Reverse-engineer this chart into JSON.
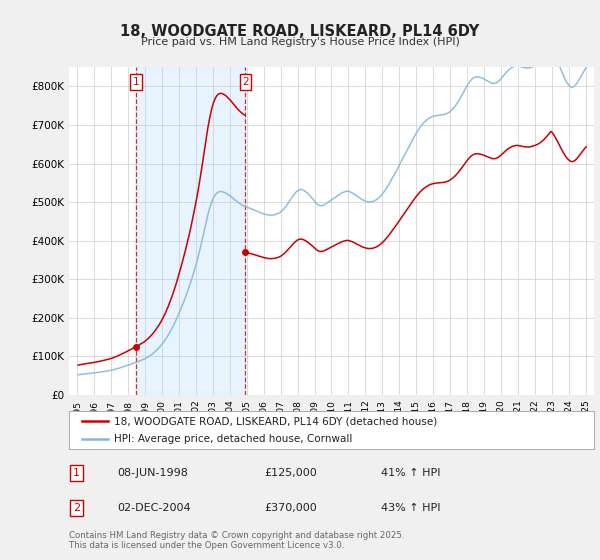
{
  "title": "18, WOODGATE ROAD, LISKEARD, PL14 6DY",
  "subtitle": "Price paid vs. HM Land Registry's House Price Index (HPI)",
  "legend_line1": "18, WOODGATE ROAD, LISKEARD, PL14 6DY (detached house)",
  "legend_line2": "HPI: Average price, detached house, Cornwall",
  "footnote": "Contains HM Land Registry data © Crown copyright and database right 2025.\nThis data is licensed under the Open Government Licence v3.0.",
  "table_rows": [
    [
      "1",
      "08-JUN-1998",
      "£125,000",
      "41% ↑ HPI"
    ],
    [
      "2",
      "02-DEC-2004",
      "£370,000",
      "43% ↑ HPI"
    ]
  ],
  "sale1": {
    "year": 1998.44,
    "price": 125000
  },
  "sale2": {
    "year": 2004.92,
    "price": 370000
  },
  "red_color": "#cc0000",
  "hpi_color": "#85b8d8",
  "shade_color": "#ddeeff",
  "background_color": "#f0f0f0",
  "plot_bg_color": "#ffffff",
  "ylim": [
    0,
    850000
  ],
  "yticks": [
    0,
    100000,
    200000,
    300000,
    400000,
    500000,
    600000,
    700000,
    800000
  ],
  "ytick_labels": [
    "£0",
    "£100K",
    "£200K",
    "£300K",
    "£400K",
    "£500K",
    "£600K",
    "£700K",
    "£800K"
  ],
  "xlim": [
    1994.5,
    2025.5
  ],
  "xticks": [
    1995,
    1996,
    1997,
    1998,
    1999,
    2000,
    2001,
    2002,
    2003,
    2004,
    2005,
    2006,
    2007,
    2008,
    2009,
    2010,
    2011,
    2012,
    2013,
    2014,
    2015,
    2016,
    2017,
    2018,
    2019,
    2020,
    2021,
    2022,
    2023,
    2024,
    2025
  ],
  "hpi_months": [
    1995.042,
    1995.125,
    1995.208,
    1995.292,
    1995.375,
    1995.458,
    1995.542,
    1995.625,
    1995.708,
    1995.792,
    1995.875,
    1995.958,
    1996.042,
    1996.125,
    1996.208,
    1996.292,
    1996.375,
    1996.458,
    1996.542,
    1996.625,
    1996.708,
    1996.792,
    1996.875,
    1996.958,
    1997.042,
    1997.125,
    1997.208,
    1997.292,
    1997.375,
    1997.458,
    1997.542,
    1997.625,
    1997.708,
    1997.792,
    1997.875,
    1997.958,
    1998.042,
    1998.125,
    1998.208,
    1998.292,
    1998.375,
    1998.458,
    1998.542,
    1998.625,
    1998.708,
    1998.792,
    1998.875,
    1998.958,
    1999.042,
    1999.125,
    1999.208,
    1999.292,
    1999.375,
    1999.458,
    1999.542,
    1999.625,
    1999.708,
    1999.792,
    1999.875,
    1999.958,
    2000.042,
    2000.125,
    2000.208,
    2000.292,
    2000.375,
    2000.458,
    2000.542,
    2000.625,
    2000.708,
    2000.792,
    2000.875,
    2000.958,
    2001.042,
    2001.125,
    2001.208,
    2001.292,
    2001.375,
    2001.458,
    2001.542,
    2001.625,
    2001.708,
    2001.792,
    2001.875,
    2001.958,
    2002.042,
    2002.125,
    2002.208,
    2002.292,
    2002.375,
    2002.458,
    2002.542,
    2002.625,
    2002.708,
    2002.792,
    2002.875,
    2002.958,
    2003.042,
    2003.125,
    2003.208,
    2003.292,
    2003.375,
    2003.458,
    2003.542,
    2003.625,
    2003.708,
    2003.792,
    2003.875,
    2003.958,
    2004.042,
    2004.125,
    2004.208,
    2004.292,
    2004.375,
    2004.458,
    2004.542,
    2004.625,
    2004.708,
    2004.792,
    2004.875,
    2004.958,
    2005.042,
    2005.125,
    2005.208,
    2005.292,
    2005.375,
    2005.458,
    2005.542,
    2005.625,
    2005.708,
    2005.792,
    2005.875,
    2005.958,
    2006.042,
    2006.125,
    2006.208,
    2006.292,
    2006.375,
    2006.458,
    2006.542,
    2006.625,
    2006.708,
    2006.792,
    2006.875,
    2006.958,
    2007.042,
    2007.125,
    2007.208,
    2007.292,
    2007.375,
    2007.458,
    2007.542,
    2007.625,
    2007.708,
    2007.792,
    2007.875,
    2007.958,
    2008.042,
    2008.125,
    2008.208,
    2008.292,
    2008.375,
    2008.458,
    2008.542,
    2008.625,
    2008.708,
    2008.792,
    2008.875,
    2008.958,
    2009.042,
    2009.125,
    2009.208,
    2009.292,
    2009.375,
    2009.458,
    2009.542,
    2009.625,
    2009.708,
    2009.792,
    2009.875,
    2009.958,
    2010.042,
    2010.125,
    2010.208,
    2010.292,
    2010.375,
    2010.458,
    2010.542,
    2010.625,
    2010.708,
    2010.792,
    2010.875,
    2010.958,
    2011.042,
    2011.125,
    2011.208,
    2011.292,
    2011.375,
    2011.458,
    2011.542,
    2011.625,
    2011.708,
    2011.792,
    2011.875,
    2011.958,
    2012.042,
    2012.125,
    2012.208,
    2012.292,
    2012.375,
    2012.458,
    2012.542,
    2012.625,
    2012.708,
    2012.792,
    2012.875,
    2012.958,
    2013.042,
    2013.125,
    2013.208,
    2013.292,
    2013.375,
    2013.458,
    2013.542,
    2013.625,
    2013.708,
    2013.792,
    2013.875,
    2013.958,
    2014.042,
    2014.125,
    2014.208,
    2014.292,
    2014.375,
    2014.458,
    2014.542,
    2014.625,
    2014.708,
    2014.792,
    2014.875,
    2014.958,
    2015.042,
    2015.125,
    2015.208,
    2015.292,
    2015.375,
    2015.458,
    2015.542,
    2015.625,
    2015.708,
    2015.792,
    2015.875,
    2015.958,
    2016.042,
    2016.125,
    2016.208,
    2016.292,
    2016.375,
    2016.458,
    2016.542,
    2016.625,
    2016.708,
    2016.792,
    2016.875,
    2016.958,
    2017.042,
    2017.125,
    2017.208,
    2017.292,
    2017.375,
    2017.458,
    2017.542,
    2017.625,
    2017.708,
    2017.792,
    2017.875,
    2017.958,
    2018.042,
    2018.125,
    2018.208,
    2018.292,
    2018.375,
    2018.458,
    2018.542,
    2018.625,
    2018.708,
    2018.792,
    2018.875,
    2018.958,
    2019.042,
    2019.125,
    2019.208,
    2019.292,
    2019.375,
    2019.458,
    2019.542,
    2019.625,
    2019.708,
    2019.792,
    2019.875,
    2019.958,
    2020.042,
    2020.125,
    2020.208,
    2020.292,
    2020.375,
    2020.458,
    2020.542,
    2020.625,
    2020.708,
    2020.792,
    2020.875,
    2020.958,
    2021.042,
    2021.125,
    2021.208,
    2021.292,
    2021.375,
    2021.458,
    2021.542,
    2021.625,
    2021.708,
    2021.792,
    2021.875,
    2021.958,
    2022.042,
    2022.125,
    2022.208,
    2022.292,
    2022.375,
    2022.458,
    2022.542,
    2022.625,
    2022.708,
    2022.792,
    2022.875,
    2022.958,
    2023.042,
    2023.125,
    2023.208,
    2023.292,
    2023.375,
    2023.458,
    2023.542,
    2023.625,
    2023.708,
    2023.792,
    2023.875,
    2023.958,
    2024.042,
    2024.125,
    2024.208,
    2024.292,
    2024.375,
    2024.458,
    2024.542,
    2024.625,
    2024.708,
    2024.792,
    2024.875,
    2024.958,
    2025.042
  ],
  "hpi_values": [
    52000,
    52500,
    53000,
    53400,
    53800,
    54200,
    54600,
    55000,
    55400,
    55800,
    56200,
    56600,
    57000,
    57500,
    58000,
    58500,
    59000,
    59600,
    60200,
    60800,
    61400,
    62000,
    62700,
    63400,
    64100,
    65000,
    66000,
    67000,
    68000,
    69200,
    70400,
    71600,
    72800,
    74000,
    75200,
    76500,
    77800,
    79100,
    80400,
    81700,
    83000,
    84300,
    85600,
    87000,
    88500,
    90000,
    91500,
    93000,
    95000,
    97200,
    99500,
    102000,
    104500,
    107500,
    110500,
    114000,
    117500,
    121000,
    125000,
    129500,
    134000,
    139000,
    144500,
    150000,
    156000,
    162500,
    169000,
    176000,
    183500,
    191000,
    199000,
    207500,
    216500,
    225000,
    234000,
    243500,
    253000,
    263000,
    273500,
    284000,
    295000,
    307000,
    319000,
    331500,
    344000,
    358000,
    372500,
    388000,
    404000,
    420000,
    436500,
    453000,
    468500,
    482000,
    494000,
    504000,
    512000,
    518000,
    522500,
    525500,
    527000,
    527500,
    527000,
    526000,
    524500,
    522500,
    520000,
    517500,
    515000,
    512000,
    509000,
    506000,
    503000,
    500000,
    497500,
    495000,
    493000,
    491000,
    489500,
    488000,
    486500,
    485000,
    483500,
    482000,
    480500,
    479000,
    477500,
    476000,
    474500,
    473000,
    471500,
    470000,
    469000,
    468000,
    467000,
    466500,
    466000,
    466000,
    466500,
    467000,
    468000,
    469500,
    471000,
    473000,
    476000,
    479500,
    483500,
    488000,
    493000,
    498500,
    504000,
    509500,
    515000,
    520000,
    524500,
    528500,
    531000,
    532500,
    533000,
    532000,
    530000,
    527500,
    524500,
    521000,
    517000,
    513000,
    509000,
    505000,
    500000,
    496000,
    493000,
    491000,
    490500,
    491000,
    492500,
    494500,
    497000,
    499500,
    502000,
    504500,
    507000,
    509500,
    512000,
    514500,
    517000,
    519500,
    522000,
    524000,
    525500,
    527000,
    528000,
    528500,
    527500,
    526000,
    524000,
    522000,
    519500,
    517000,
    514500,
    512000,
    509500,
    507000,
    505000,
    503500,
    502000,
    501000,
    500500,
    500500,
    501000,
    502000,
    503500,
    505500,
    508000,
    511000,
    514500,
    518500,
    523000,
    528000,
    533500,
    539000,
    545000,
    551500,
    558000,
    564500,
    571000,
    578000,
    585000,
    592000,
    599000,
    606000,
    613000,
    620000,
    627500,
    634500,
    641500,
    648500,
    655500,
    662500,
    669000,
    675500,
    681500,
    687500,
    693000,
    698000,
    702500,
    706500,
    710000,
    713000,
    716000,
    718500,
    720500,
    722000,
    723000,
    724000,
    724500,
    725000,
    725500,
    726000,
    726500,
    727000,
    728000,
    729500,
    731000,
    733500,
    736500,
    740000,
    744000,
    748500,
    753500,
    759000,
    765000,
    771500,
    778000,
    785000,
    791500,
    798000,
    804500,
    810000,
    815000,
    819000,
    822000,
    824000,
    825000,
    825000,
    824500,
    823500,
    822000,
    820500,
    818500,
    816500,
    814500,
    812500,
    810500,
    809000,
    808000,
    808000,
    809000,
    811000,
    814000,
    817500,
    822000,
    826500,
    831000,
    835500,
    839500,
    843000,
    846000,
    848500,
    850500,
    852000,
    853000,
    853500,
    853000,
    852000,
    851000,
    850000,
    849000,
    848500,
    848000,
    848000,
    848500,
    849500,
    851000,
    852500,
    854000,
    856000,
    858500,
    861500,
    865000,
    869000,
    873500,
    878500,
    884000,
    890000,
    896000,
    901500,
    897000,
    890000,
    882000,
    873000,
    863500,
    854000,
    844500,
    835500,
    827000,
    819000,
    812000,
    806500,
    802000,
    799000,
    798000,
    799000,
    802000,
    806500,
    812000,
    818000,
    824500,
    831000,
    837500,
    843500,
    849000
  ]
}
